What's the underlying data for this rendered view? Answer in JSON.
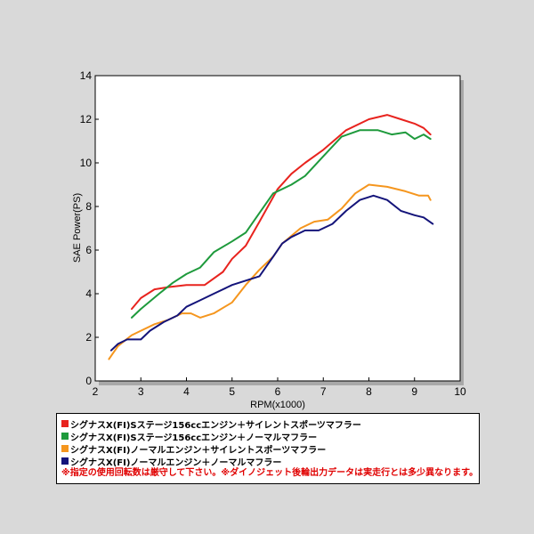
{
  "chart_data": {
    "type": "line",
    "title": "",
    "xlabel": "RPM(x1000)",
    "ylabel": "SAE Power(PS)",
    "xlim": [
      2,
      10
    ],
    "ylim": [
      0,
      14
    ],
    "x_ticks": [
      "2",
      "3",
      "4",
      "5",
      "6",
      "7",
      "8",
      "9",
      "10"
    ],
    "y_ticks": [
      "0",
      "2",
      "4",
      "6",
      "8",
      "10",
      "12",
      "14"
    ],
    "grid": false,
    "legend_position": "below",
    "series": [
      {
        "name": "シグナスX(FI)Sステージ156ccエンジン＋サイレントスポーツマフラー",
        "color": "#e8231e",
        "points": [
          [
            2.8,
            3.3
          ],
          [
            3.0,
            3.8
          ],
          [
            3.3,
            4.2
          ],
          [
            3.6,
            4.3
          ],
          [
            4.0,
            4.4
          ],
          [
            4.4,
            4.4
          ],
          [
            4.8,
            5.0
          ],
          [
            5.0,
            5.6
          ],
          [
            5.3,
            6.2
          ],
          [
            5.6,
            7.3
          ],
          [
            6.0,
            8.8
          ],
          [
            6.3,
            9.5
          ],
          [
            6.6,
            10.0
          ],
          [
            7.0,
            10.6
          ],
          [
            7.5,
            11.5
          ],
          [
            8.0,
            12.0
          ],
          [
            8.4,
            12.2
          ],
          [
            8.7,
            12.0
          ],
          [
            9.0,
            11.8
          ],
          [
            9.2,
            11.6
          ],
          [
            9.35,
            11.3
          ]
        ]
      },
      {
        "name": "シグナスX(FI)Sステージ156ccエンジン＋ノーマルマフラー",
        "color": "#1e9a3c",
        "points": [
          [
            2.8,
            2.9
          ],
          [
            3.0,
            3.3
          ],
          [
            3.4,
            4.0
          ],
          [
            3.7,
            4.5
          ],
          [
            4.0,
            4.9
          ],
          [
            4.3,
            5.2
          ],
          [
            4.6,
            5.9
          ],
          [
            5.0,
            6.4
          ],
          [
            5.3,
            6.8
          ],
          [
            5.6,
            7.7
          ],
          [
            5.9,
            8.6
          ],
          [
            6.3,
            9.0
          ],
          [
            6.6,
            9.4
          ],
          [
            7.0,
            10.3
          ],
          [
            7.4,
            11.2
          ],
          [
            7.8,
            11.5
          ],
          [
            8.2,
            11.5
          ],
          [
            8.5,
            11.3
          ],
          [
            8.8,
            11.4
          ],
          [
            9.0,
            11.1
          ],
          [
            9.2,
            11.3
          ],
          [
            9.35,
            11.1
          ]
        ]
      },
      {
        "name": "シグナスX(FI)ノーマルエンジン＋サイレントスポーツマフラー",
        "color": "#f5961e",
        "points": [
          [
            2.3,
            1.0
          ],
          [
            2.5,
            1.6
          ],
          [
            2.8,
            2.1
          ],
          [
            3.0,
            2.3
          ],
          [
            3.3,
            2.6
          ],
          [
            3.6,
            2.8
          ],
          [
            3.9,
            3.1
          ],
          [
            4.1,
            3.1
          ],
          [
            4.3,
            2.9
          ],
          [
            4.6,
            3.1
          ],
          [
            5.0,
            3.6
          ],
          [
            5.3,
            4.4
          ],
          [
            5.6,
            5.1
          ],
          [
            5.9,
            5.7
          ],
          [
            6.1,
            6.3
          ],
          [
            6.5,
            7.0
          ],
          [
            6.8,
            7.3
          ],
          [
            7.1,
            7.4
          ],
          [
            7.4,
            7.9
          ],
          [
            7.7,
            8.6
          ],
          [
            8.0,
            9.0
          ],
          [
            8.4,
            8.9
          ],
          [
            8.8,
            8.7
          ],
          [
            9.1,
            8.5
          ],
          [
            9.3,
            8.5
          ],
          [
            9.35,
            8.3
          ]
        ]
      },
      {
        "name": "シグナスX(FI)ノーマルエンジン＋ノーマルマフラー",
        "color": "#14147a",
        "points": [
          [
            2.35,
            1.4
          ],
          [
            2.5,
            1.7
          ],
          [
            2.7,
            1.9
          ],
          [
            3.0,
            1.9
          ],
          [
            3.2,
            2.3
          ],
          [
            3.5,
            2.7
          ],
          [
            3.8,
            3.0
          ],
          [
            4.0,
            3.4
          ],
          [
            4.3,
            3.7
          ],
          [
            4.6,
            4.0
          ],
          [
            5.0,
            4.4
          ],
          [
            5.3,
            4.6
          ],
          [
            5.6,
            4.8
          ],
          [
            5.9,
            5.7
          ],
          [
            6.1,
            6.3
          ],
          [
            6.3,
            6.6
          ],
          [
            6.6,
            6.9
          ],
          [
            6.9,
            6.9
          ],
          [
            7.2,
            7.2
          ],
          [
            7.5,
            7.8
          ],
          [
            7.8,
            8.3
          ],
          [
            8.1,
            8.5
          ],
          [
            8.4,
            8.3
          ],
          [
            8.7,
            7.8
          ],
          [
            9.0,
            7.6
          ],
          [
            9.2,
            7.5
          ],
          [
            9.4,
            7.2
          ]
        ]
      }
    ]
  },
  "legend": {
    "items": [
      {
        "label": "シグナスX(FI)Sステージ156ccエンジン＋サイレントスポーツマフラー",
        "color": "#e8231e"
      },
      {
        "label": "シグナスX(FI)Sステージ156ccエンジン＋ノーマルマフラー",
        "color": "#1e9a3c"
      },
      {
        "label": "シグナスX(FI)ノーマルエンジン＋サイレントスポーツマフラー",
        "color": "#f5961e"
      },
      {
        "label": "シグナスX(FI)ノーマルエンジン＋ノーマルマフラー",
        "color": "#14147a"
      }
    ],
    "note": "※指定の使用回転数は厳守して下さい。※ダイノジェット後輪出力データは実走行とは多少異なります。",
    "note_color": "#e00000"
  }
}
